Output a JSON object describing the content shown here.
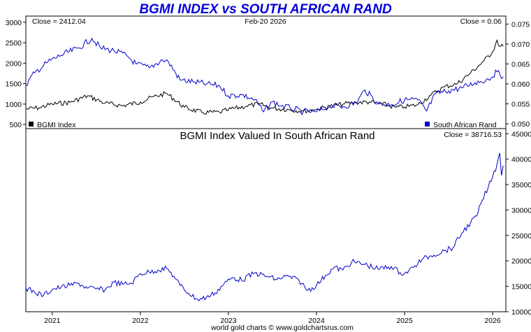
{
  "chart_data": {
    "type": "line",
    "title": "BGMI INDEX vs SOUTH AFRICAN RAND",
    "footer": "world gold charts © www.goldchartsrus.com",
    "date_label": "Feb-20  2026",
    "x_tick_labels": [
      "2021",
      "2022",
      "2023",
      "2024",
      "2025",
      "2026"
    ],
    "x_tick_values": [
      2021.0,
      2022.0,
      2023.0,
      2024.0,
      2025.0,
      2026.0
    ],
    "xlim": [
      2020.7,
      2026.15
    ],
    "top_panel": {
      "left_close_label": "Close = 2412.04",
      "right_close_label": "Close = 0.06",
      "left_ylim": [
        400,
        3150
      ],
      "right_ylim": [
        0.0488,
        0.077
      ],
      "left_ticks": [
        "3000",
        "2500",
        "2000",
        "1500",
        "1000",
        "500"
      ],
      "left_tick_values": [
        3000,
        2500,
        2000,
        1500,
        1000,
        500
      ],
      "right_ticks": [
        "0.075",
        "0.070",
        "0.065",
        "0.060",
        "0.055",
        "0.050"
      ],
      "right_tick_values": [
        0.075,
        0.07,
        0.065,
        0.06,
        0.055,
        0.05
      ],
      "series": [
        {
          "name": "BGMI Index",
          "axis": "left",
          "color": "#000000",
          "x": [
            2020.7,
            2020.85,
            2021.0,
            2021.2,
            2021.4,
            2021.6,
            2021.8,
            2022.0,
            2022.15,
            2022.3,
            2022.5,
            2022.7,
            2022.9,
            2023.0,
            2023.2,
            2023.35,
            2023.5,
            2023.7,
            2023.85,
            2024.0,
            2024.15,
            2024.3,
            2024.45,
            2024.6,
            2024.75,
            2024.9,
            2025.0,
            2025.15,
            2025.3,
            2025.45,
            2025.6,
            2025.75,
            2025.9,
            2026.0,
            2026.05,
            2026.08,
            2026.12
          ],
          "y": [
            880,
            910,
            1000,
            1040,
            1200,
            1020,
            960,
            1050,
            1180,
            1260,
            920,
            790,
            800,
            860,
            950,
            1000,
            900,
            860,
            830,
            870,
            940,
            1000,
            1040,
            1050,
            1000,
            920,
            930,
            980,
            1220,
            1420,
            1500,
            1760,
            2050,
            2280,
            2560,
            2410,
            2412
          ]
        },
        {
          "name": "South African Rand",
          "axis": "right",
          "color": "#0000cc",
          "x": [
            2020.7,
            2020.8,
            2020.95,
            2021.1,
            2021.3,
            2021.45,
            2021.55,
            2021.7,
            2021.85,
            2021.95,
            2022.1,
            2022.25,
            2022.32,
            2022.45,
            2022.6,
            2022.75,
            2022.9,
            2023.0,
            2023.15,
            2023.3,
            2023.4,
            2023.5,
            2023.6,
            2023.7,
            2023.85,
            2024.0,
            2024.15,
            2024.3,
            2024.45,
            2024.55,
            2024.7,
            2024.85,
            2025.0,
            2025.15,
            2025.25,
            2025.35,
            2025.5,
            2025.65,
            2025.8,
            2025.95,
            2026.05,
            2026.12
          ],
          "y": [
            0.0597,
            0.0628,
            0.0655,
            0.0672,
            0.069,
            0.0714,
            0.069,
            0.0683,
            0.067,
            0.065,
            0.064,
            0.066,
            0.0655,
            0.061,
            0.0605,
            0.06,
            0.0595,
            0.057,
            0.0573,
            0.056,
            0.053,
            0.0555,
            0.0545,
            0.054,
            0.053,
            0.053,
            0.0545,
            0.0543,
            0.0552,
            0.0585,
            0.055,
            0.0548,
            0.056,
            0.056,
            0.0532,
            0.0575,
            0.0583,
            0.059,
            0.0603,
            0.0612,
            0.063,
            0.0618
          ]
        }
      ]
    },
    "bottom_panel": {
      "title": "BGMI Index Valued In South African Rand",
      "close_label": "Close = 38716.53",
      "ylim": [
        10000,
        46000
      ],
      "ticks": [
        "45000",
        "40000",
        "35000",
        "30000",
        "25000",
        "20000",
        "15000",
        "10000"
      ],
      "tick_values": [
        45000,
        40000,
        35000,
        30000,
        25000,
        20000,
        15000,
        10000
      ],
      "series": [
        {
          "name": "BGMI Index Valued In South African Rand",
          "color": "#0000cc",
          "x": [
            2020.7,
            2020.8,
            2020.9,
            2021.0,
            2021.1,
            2021.2,
            2021.3,
            2021.4,
            2021.5,
            2021.6,
            2021.7,
            2021.8,
            2021.9,
            2022.0,
            2022.1,
            2022.2,
            2022.3,
            2022.38,
            2022.45,
            2022.55,
            2022.65,
            2022.75,
            2022.85,
            2022.95,
            2023.05,
            2023.15,
            2023.3,
            2023.45,
            2023.55,
            2023.65,
            2023.8,
            2023.9,
            2024.0,
            2024.1,
            2024.2,
            2024.3,
            2024.4,
            2024.55,
            2024.7,
            2024.85,
            2024.95,
            2025.0,
            2025.1,
            2025.2,
            2025.3,
            2025.45,
            2025.55,
            2025.65,
            2025.75,
            2025.82,
            2025.88,
            2025.95,
            2026.0,
            2026.05,
            2026.08,
            2026.1,
            2026.12
          ],
          "y": [
            14700,
            13800,
            13200,
            14400,
            14800,
            15200,
            15600,
            14600,
            14500,
            14300,
            15800,
            15400,
            15600,
            17500,
            17800,
            18200,
            18500,
            17000,
            15200,
            13600,
            12400,
            12800,
            13700,
            15500,
            16700,
            16200,
            17600,
            16900,
            16300,
            17000,
            16200,
            14200,
            15200,
            17100,
            18700,
            18200,
            19800,
            19300,
            18400,
            18900,
            17700,
            17500,
            18700,
            20300,
            21000,
            22000,
            22600,
            25500,
            27500,
            28800,
            31800,
            34500,
            36500,
            39000,
            41200,
            36800,
            38717
          ]
        }
      ]
    },
    "legend": {
      "left_series_label": "BGMI Index",
      "right_series_label": "South African Rand",
      "left_series_color": "#000000",
      "right_series_color": "#0000cc"
    }
  }
}
